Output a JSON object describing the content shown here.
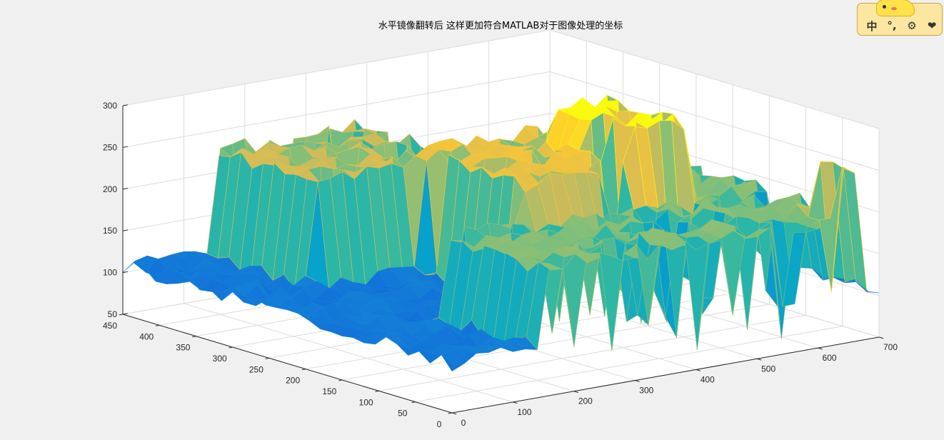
{
  "chart_data": {
    "type": "surface3d",
    "title": "水平镜像翻转后 这样更加符合MATLAB对于图像处理的坐标",
    "x_ticks": [
      0,
      100,
      200,
      300,
      400,
      500,
      600,
      700
    ],
    "y_ticks": [
      0,
      50,
      100,
      150,
      200,
      250,
      300,
      350,
      400,
      450
    ],
    "z_ticks": [
      50,
      100,
      150,
      200,
      250,
      300
    ],
    "xlim": [
      0,
      700
    ],
    "ylim": [
      0,
      450
    ],
    "zlim": [
      50,
      300
    ],
    "grid": true,
    "colormap": "parula",
    "surface_summary": {
      "base_plateau": 200,
      "high_plateau": 240,
      "low_values": 100,
      "min_value": 60,
      "max_value": 285,
      "regions": [
        {
          "x": [
            340,
            660
          ],
          "y": [
            0,
            300
          ],
          "z": 200
        },
        {
          "x": [
            150,
            380
          ],
          "y": [
            0,
            160
          ],
          "z": 200
        },
        {
          "x": [
            140,
            380
          ],
          "y": [
            300,
            450
          ],
          "z": 230
        },
        {
          "x": [
            300,
            560
          ],
          "y": [
            150,
            300
          ],
          "z": 245
        },
        {
          "x": [
            480,
            560
          ],
          "y": [
            140,
            260
          ],
          "z": 285
        },
        {
          "x": [
            640,
            660
          ],
          "y": [
            0,
            30
          ],
          "z": 260
        }
      ]
    }
  },
  "colors": {
    "background": "#f0f0f0",
    "axes_face": "#ffffff",
    "grid": "#dcdcdc",
    "axis_line": "#262626",
    "parula": [
      "#352a87",
      "#0f5cdd",
      "#1481d6",
      "#06a4ca",
      "#2eb7a4",
      "#87bf77",
      "#d1bb59",
      "#fec832",
      "#f9fb0e"
    ]
  },
  "ime_toolbar": {
    "lang": "中",
    "punct": "°,",
    "settings_icon": "gear-icon",
    "skin_icon": "heart-icon"
  }
}
